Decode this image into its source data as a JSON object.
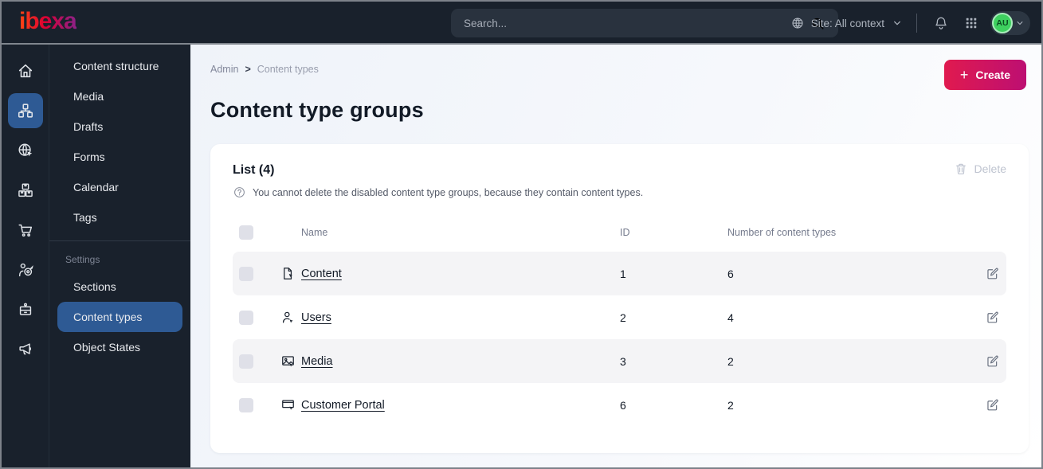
{
  "topbar": {
    "logo": "ibexa",
    "search_placeholder": "Search...",
    "site_context": "Site: All context",
    "avatar_initials": "AU"
  },
  "rail_icons": [
    "home",
    "content-structure",
    "site",
    "product-catalog",
    "commerce",
    "customer-profile",
    "corporate",
    "marketing"
  ],
  "sidebar": {
    "items": [
      "Content structure",
      "Media",
      "Drafts",
      "Forms",
      "Calendar",
      "Tags"
    ],
    "section_label": "Settings",
    "settings_items": [
      "Sections",
      "Content types",
      "Object States"
    ],
    "active_item": "Content types"
  },
  "breadcrumb": {
    "root": "Admin",
    "separator": ">",
    "current": "Content types"
  },
  "header": {
    "title": "Content type groups",
    "create_label": "Create",
    "plus": "+"
  },
  "list": {
    "title": "List (4)",
    "help_text": "You cannot delete the disabled content type groups, because they contain content types.",
    "delete_label": "Delete",
    "table": {
      "columns": [
        "Name",
        "ID",
        "Number of content types"
      ],
      "rows": [
        {
          "name": "Content",
          "icon": "file",
          "id": "1",
          "count": "6"
        },
        {
          "name": "Users",
          "icon": "user",
          "id": "2",
          "count": "4"
        },
        {
          "name": "Media",
          "icon": "image",
          "id": "3",
          "count": "2"
        },
        {
          "name": "Customer Portal",
          "icon": "monitor",
          "id": "6",
          "count": "2"
        }
      ]
    }
  },
  "colors": {
    "darknav": "#19212c",
    "accent": "#2e5a94",
    "create-from": "#e01a4f",
    "create-to": "#bd0f72",
    "avatar-green": "#3ed05f"
  }
}
